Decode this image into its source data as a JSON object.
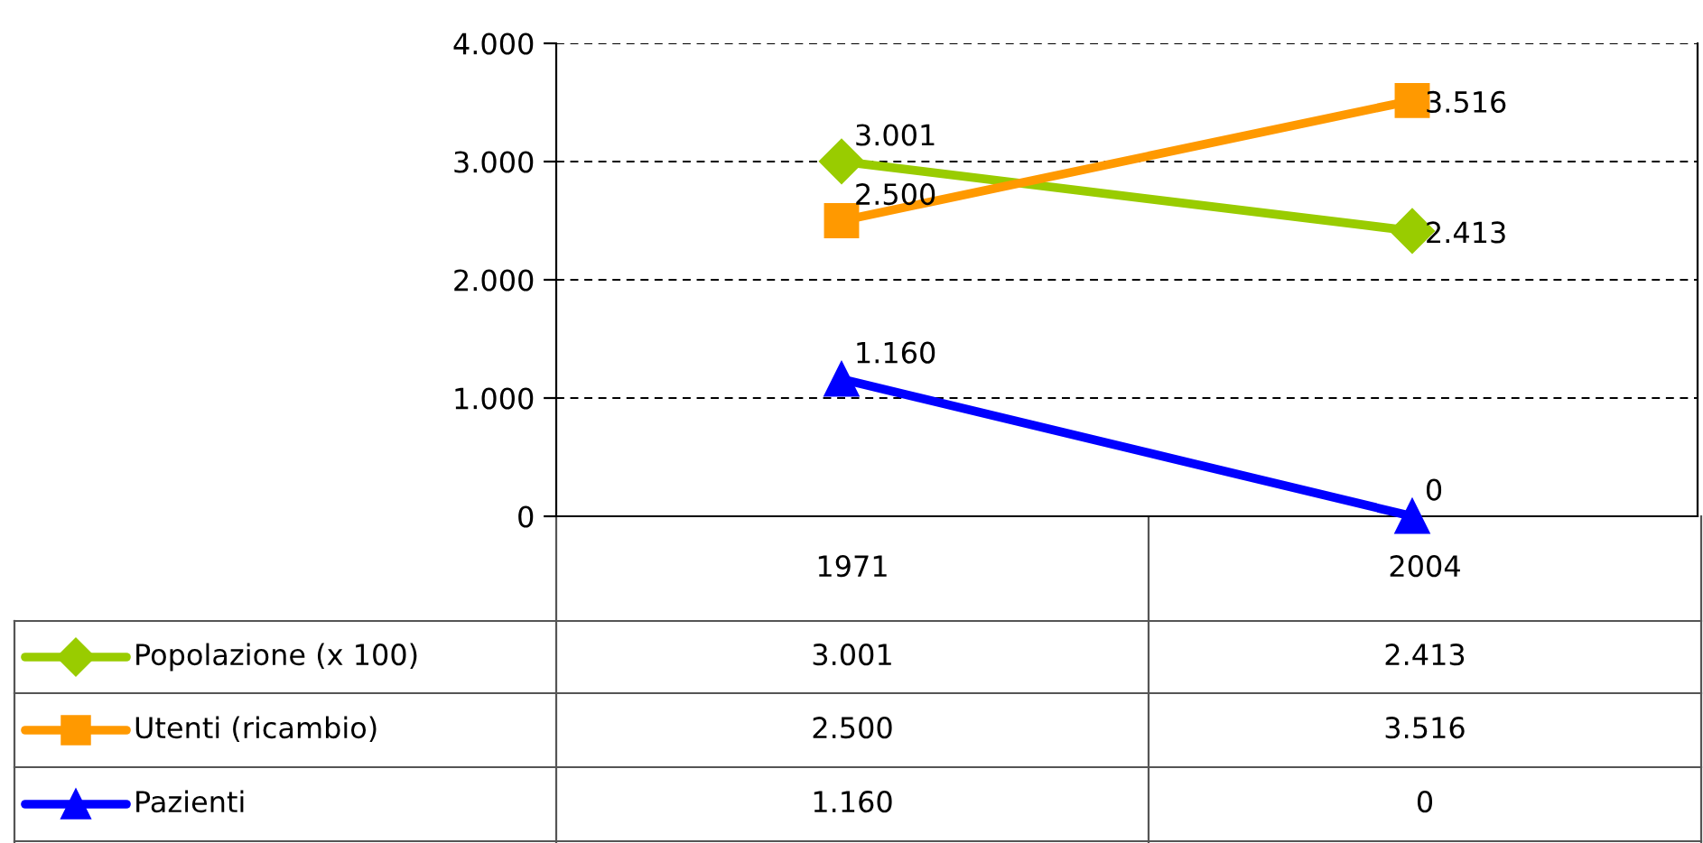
{
  "chart_data": {
    "type": "line",
    "categories": [
      "1971",
      "2004"
    ],
    "series": [
      {
        "name": "Popolazione (x 100)",
        "color": "#99cc00",
        "marker": "diamond",
        "values": [
          3001,
          2413
        ],
        "value_labels": [
          "3.001",
          "2.413"
        ]
      },
      {
        "name": "Utenti (ricambio)",
        "color": "#ff9900",
        "marker": "square",
        "values": [
          2500,
          3516
        ],
        "value_labels": [
          "2.500",
          "3.516"
        ]
      },
      {
        "name": "Pazienti",
        "color": "#0000ff",
        "marker": "triangle",
        "values": [
          1160,
          0
        ],
        "value_labels": [
          "1.160",
          "0"
        ]
      }
    ],
    "ylim": [
      0,
      4000
    ],
    "yticks": [
      {
        "value": 0,
        "label": "0"
      },
      {
        "value": 1000,
        "label": "1.000"
      },
      {
        "value": 2000,
        "label": "2.000"
      },
      {
        "value": 3000,
        "label": "3.000"
      },
      {
        "value": 4000,
        "label": "4.000"
      }
    ],
    "grid": "y",
    "legend": "bottom",
    "line_style": "solid"
  }
}
